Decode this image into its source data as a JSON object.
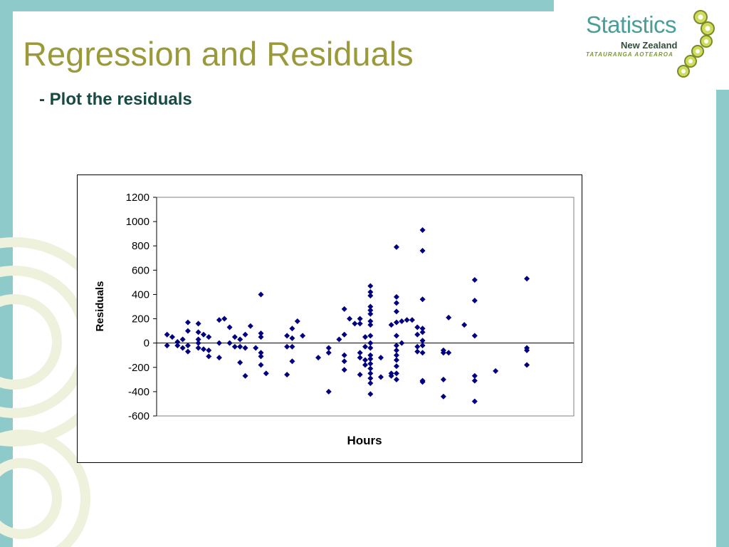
{
  "slide": {
    "title": "Regression and Residuals",
    "subtitle": "- Plot the residuals"
  },
  "logo": {
    "title": "Statistics",
    "subtitle": "New Zealand",
    "tagline": "TATAURANGA AOTEAROA"
  },
  "colors": {
    "frame": "#8fcacb",
    "title": "#9a9a3a",
    "subtitle": "#184a44",
    "marker": "#000080"
  },
  "chart_data": {
    "type": "scatter",
    "title": "",
    "xlabel": "Hours",
    "ylabel": "Residuals",
    "ylim": [
      -600,
      1200
    ],
    "yticks": [
      -600,
      -400,
      -200,
      0,
      200,
      400,
      600,
      800,
      1000,
      1200
    ],
    "xlim": [
      0,
      80
    ],
    "x_tick_labels": "none",
    "grid": false,
    "legend": "none",
    "marker": "diamond",
    "points": [
      [
        2,
        -20
      ],
      [
        2,
        70
      ],
      [
        3,
        50
      ],
      [
        4,
        -20
      ],
      [
        4,
        10
      ],
      [
        5,
        -40
      ],
      [
        5,
        30
      ],
      [
        6,
        -70
      ],
      [
        6,
        -20
      ],
      [
        6,
        100
      ],
      [
        6,
        170
      ],
      [
        8,
        160
      ],
      [
        8,
        90
      ],
      [
        8,
        30
      ],
      [
        8,
        -40
      ],
      [
        8,
        0
      ],
      [
        9,
        70
      ],
      [
        9,
        -50
      ],
      [
        10,
        50
      ],
      [
        10,
        -60
      ],
      [
        10,
        -110
      ],
      [
        12,
        190
      ],
      [
        12,
        0
      ],
      [
        12,
        -120
      ],
      [
        13,
        200
      ],
      [
        14,
        130
      ],
      [
        14,
        0
      ],
      [
        15,
        -30
      ],
      [
        15,
        50
      ],
      [
        16,
        30
      ],
      [
        16,
        -30
      ],
      [
        16,
        -160
      ],
      [
        17,
        70
      ],
      [
        17,
        -40
      ],
      [
        17,
        -270
      ],
      [
        18,
        140
      ],
      [
        19,
        -40
      ],
      [
        20,
        400
      ],
      [
        20,
        80
      ],
      [
        20,
        50
      ],
      [
        20,
        -80
      ],
      [
        20,
        -110
      ],
      [
        20,
        -180
      ],
      [
        21,
        -250
      ],
      [
        25,
        60
      ],
      [
        25,
        -30
      ],
      [
        25,
        -260
      ],
      [
        26,
        40
      ],
      [
        26,
        -30
      ],
      [
        26,
        -150
      ],
      [
        26,
        120
      ],
      [
        27,
        180
      ],
      [
        28,
        60
      ],
      [
        31,
        -120
      ],
      [
        33,
        -40
      ],
      [
        33,
        -80
      ],
      [
        33,
        -400
      ],
      [
        35,
        30
      ],
      [
        36,
        70
      ],
      [
        36,
        280
      ],
      [
        36,
        -100
      ],
      [
        36,
        -150
      ],
      [
        36,
        -220
      ],
      [
        37,
        200
      ],
      [
        38,
        160
      ],
      [
        39,
        200
      ],
      [
        39,
        160
      ],
      [
        39,
        -80
      ],
      [
        39,
        -120
      ],
      [
        39,
        -260
      ],
      [
        40,
        50
      ],
      [
        40,
        -30
      ],
      [
        40,
        -140
      ],
      [
        40,
        -180
      ],
      [
        41,
        470
      ],
      [
        41,
        420
      ],
      [
        41,
        390
      ],
      [
        41,
        300
      ],
      [
        41,
        270
      ],
      [
        41,
        240
      ],
      [
        41,
        180
      ],
      [
        41,
        150
      ],
      [
        41,
        60
      ],
      [
        41,
        0
      ],
      [
        41,
        -40
      ],
      [
        41,
        -100
      ],
      [
        41,
        -130
      ],
      [
        41,
        -170
      ],
      [
        41,
        -210
      ],
      [
        41,
        -250
      ],
      [
        41,
        -290
      ],
      [
        41,
        -330
      ],
      [
        41,
        -420
      ],
      [
        43,
        -120
      ],
      [
        43,
        -280
      ],
      [
        45,
        150
      ],
      [
        45,
        -250
      ],
      [
        45,
        -270
      ],
      [
        46,
        790
      ],
      [
        46,
        380
      ],
      [
        46,
        330
      ],
      [
        46,
        260
      ],
      [
        46,
        170
      ],
      [
        46,
        60
      ],
      [
        46,
        -20
      ],
      [
        46,
        -60
      ],
      [
        46,
        -100
      ],
      [
        46,
        -140
      ],
      [
        46,
        -190
      ],
      [
        46,
        -250
      ],
      [
        46,
        -300
      ],
      [
        47,
        180
      ],
      [
        47,
        0
      ],
      [
        48,
        190
      ],
      [
        49,
        190
      ],
      [
        50,
        130
      ],
      [
        50,
        70
      ],
      [
        50,
        -30
      ],
      [
        50,
        -70
      ],
      [
        51,
        930
      ],
      [
        51,
        760
      ],
      [
        51,
        360
      ],
      [
        51,
        120
      ],
      [
        51,
        90
      ],
      [
        51,
        20
      ],
      [
        51,
        -20
      ],
      [
        51,
        -80
      ],
      [
        51,
        -310
      ],
      [
        51,
        -320
      ],
      [
        55,
        -60
      ],
      [
        55,
        -80
      ],
      [
        55,
        -300
      ],
      [
        55,
        -440
      ],
      [
        56,
        210
      ],
      [
        56,
        -80
      ],
      [
        59,
        150
      ],
      [
        61,
        520
      ],
      [
        61,
        350
      ],
      [
        61,
        60
      ],
      [
        61,
        -270
      ],
      [
        61,
        -310
      ],
      [
        61,
        -480
      ],
      [
        65,
        -230
      ],
      [
        71,
        530
      ],
      [
        71,
        -40
      ],
      [
        71,
        -60
      ],
      [
        71,
        -180
      ]
    ]
  }
}
